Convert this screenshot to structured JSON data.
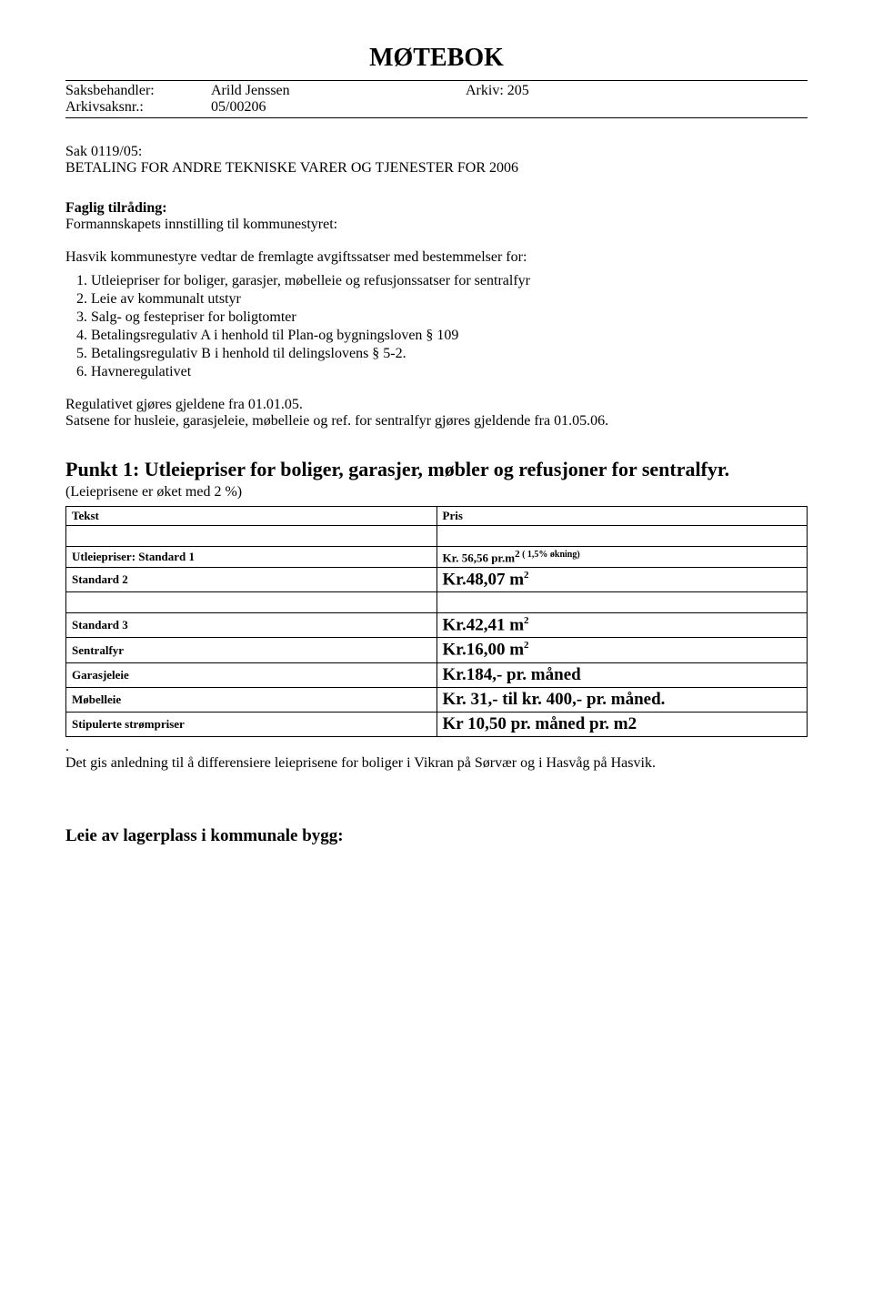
{
  "title": "MØTEBOK",
  "meta": {
    "row1": {
      "label": "Saksbehandler:",
      "val1": "Arild Jenssen",
      "val2": "Arkiv: 205"
    },
    "row2": {
      "label": "Arkivsaksnr.:",
      "val1": "05/00206",
      "val2": ""
    }
  },
  "sak": {
    "line1": "Sak 0119/05:",
    "line2": "BETALING FOR ANDRE TEKNISKE VARER OG TJENESTER FOR 2006"
  },
  "faglig": {
    "heading": "Faglig tilråding:",
    "sub": "Formannskapets innstilling til kommunestyret:",
    "intro": "Hasvik kommunestyre vedtar de fremlagte avgiftssatser med bestemmelser for:",
    "items": [
      "Utleiepriser for boliger, garasjer, møbelleie og refusjonssatser for sentralfyr",
      "Leie av kommunalt utstyr",
      "Salg- og festepriser for boligtomter",
      "Betalingsregulativ A i henhold til Plan-og bygningsloven § 109",
      "Betalingsregulativ B i henhold til delingslovens § 5-2.",
      "Havneregulativet"
    ],
    "after1": "Regulativet gjøres gjeldene fra 01.01.05.",
    "after2": "Satsene for husleie, garasjeleie, møbelleie og ref. for sentralfyr gjøres gjeldende fra 01.05.06."
  },
  "punkt1": {
    "title": "Punkt 1: Utleiepriser for boliger, garasjer, møbler og refusjoner for sentralfyr.",
    "sub": "(Leieprisene er øket med 2 %)",
    "header": {
      "tekst": "Tekst",
      "pris": "Pris"
    },
    "rows": [
      {
        "tekst": "Utleiepriser: Standard 1",
        "pris_html": "Kr. 56,56 pr.m<span class='sup'>2</span><span class='sup-note'> ( 1,5% økning)</span>",
        "tekst_class": "cell-small",
        "pris_class": "cell-small"
      },
      {
        "tekst": "Standard 2",
        "pris_html": "Kr.48,07 m<span class='sup'>2</span>",
        "tekst_class": "cell-small",
        "pris_class": "cell-big"
      },
      {
        "tekst": "Standard 3",
        "pris_html": "Kr.42,41 m<span class='sup'>2</span>",
        "tekst_class": "cell-small",
        "pris_class": "cell-big"
      },
      {
        "tekst": "Sentralfyr",
        "pris_html": "Kr.16,00 m<span class='sup'>2</span>",
        "tekst_class": "cell-small",
        "pris_class": "cell-big"
      },
      {
        "tekst": "Garasjeleie",
        "pris_html": "Kr.184,- pr. måned",
        "tekst_class": "cell-small",
        "pris_class": "cell-big"
      },
      {
        "tekst": "Møbelleie",
        "pris_html": "Kr. 31,- til kr. 400,- pr. måned.",
        "tekst_class": "cell-small",
        "pris_class": "cell-big"
      },
      {
        "tekst": "Stipulerte strømpriser",
        "pris_html": "Kr 10,50 pr. måned pr. m2",
        "tekst_class": "cell-small",
        "pris_class": "cell-big"
      }
    ],
    "after_dot": ".",
    "after_text": "Det gis anledning til å differensiere leieprisene for boliger i Vikran på Sørvær og i Hasvåg på Hasvik."
  },
  "bottom": {
    "heading": "Leie av lagerplass i kommunale bygg:"
  }
}
